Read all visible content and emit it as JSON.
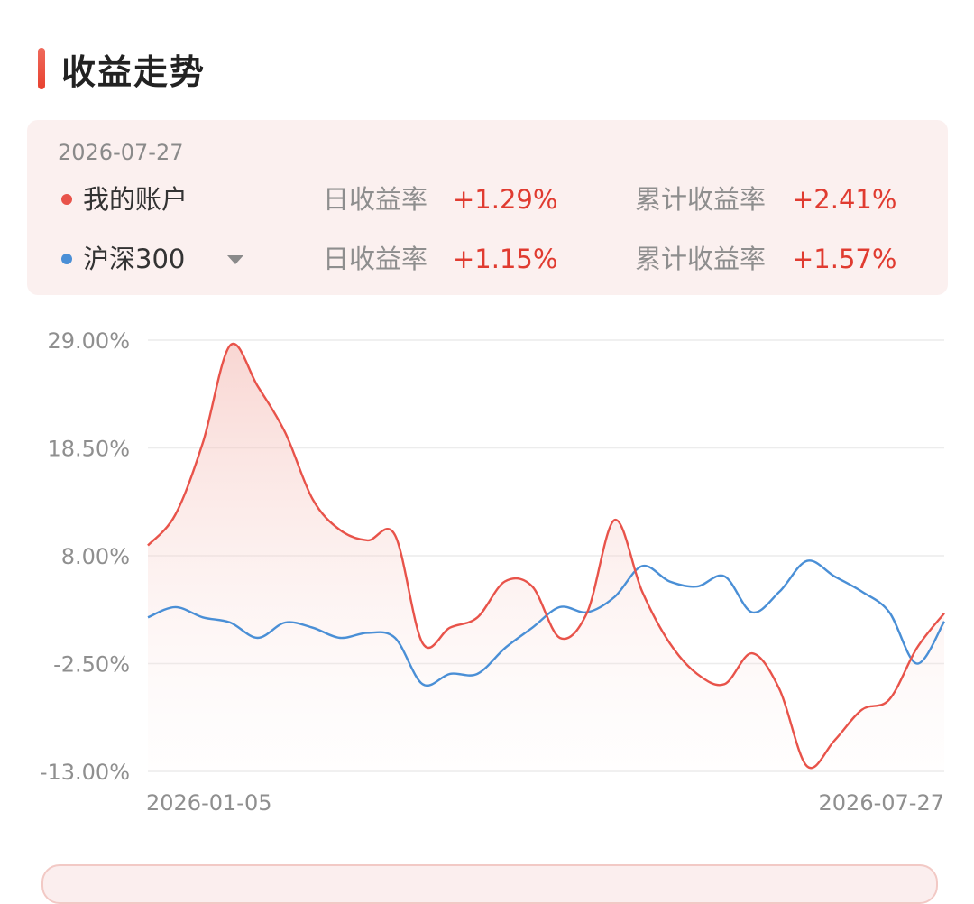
{
  "section": {
    "title": "收益走势"
  },
  "info": {
    "date": "2026-07-27",
    "rows": [
      {
        "name": "我的账户",
        "color": "#e8534a",
        "day_label": "日收益率",
        "day_value": "+1.29%",
        "cum_label": "累计收益率",
        "cum_value": "+2.41%"
      },
      {
        "name": "沪深300",
        "color": "#4a8fd6",
        "day_label": "日收益率",
        "day_value": "+1.15%",
        "cum_label": "累计收益率",
        "cum_value": "+1.57%",
        "dropdown_icon": "caret-down-icon"
      }
    ]
  },
  "chart_data": {
    "type": "line",
    "x_start": "2026-01-05",
    "x_end": "2026-07-27",
    "x_tick_labels": [
      "2026-01-05",
      "2026-07-27"
    ],
    "y_tick_labels": [
      "29.00%",
      "18.50%",
      "8.00%",
      "-2.50%",
      "-13.00%"
    ],
    "y_ticks": [
      29,
      18.5,
      8,
      -2.5,
      -13
    ],
    "ylim": [
      -13,
      29
    ],
    "grid": true,
    "series": [
      {
        "name": "我的账户",
        "color": "#e8534a",
        "area_fill": true,
        "x": [
          "2026-01-05",
          "2026-01-12",
          "2026-01-19",
          "2026-01-26",
          "2026-02-02",
          "2026-02-09",
          "2026-02-16",
          "2026-02-23",
          "2026-03-02",
          "2026-03-09",
          "2026-03-16",
          "2026-03-23",
          "2026-03-30",
          "2026-04-06",
          "2026-04-13",
          "2026-04-20",
          "2026-04-27",
          "2026-05-04",
          "2026-05-11",
          "2026-05-18",
          "2026-05-25",
          "2026-06-01",
          "2026-06-08",
          "2026-06-15",
          "2026-06-22",
          "2026-06-29",
          "2026-07-06",
          "2026-07-13",
          "2026-07-20",
          "2026-07-27"
        ],
        "values": [
          9.0,
          12.0,
          19.0,
          28.5,
          24.5,
          20.0,
          13.5,
          10.5,
          9.5,
          10.0,
          -0.5,
          1.0,
          2.0,
          5.5,
          5.0,
          0.0,
          2.5,
          11.5,
          4.5,
          -0.5,
          -3.5,
          -4.5,
          -1.5,
          -5.0,
          -12.5,
          -10.0,
          -7.0,
          -6.0,
          -1.0,
          2.4
        ]
      },
      {
        "name": "沪深300",
        "color": "#4a8fd6",
        "area_fill": false,
        "x": [
          "2026-01-05",
          "2026-01-12",
          "2026-01-19",
          "2026-01-26",
          "2026-02-02",
          "2026-02-09",
          "2026-02-16",
          "2026-02-23",
          "2026-03-02",
          "2026-03-09",
          "2026-03-16",
          "2026-03-23",
          "2026-03-30",
          "2026-04-06",
          "2026-04-13",
          "2026-04-20",
          "2026-04-27",
          "2026-05-04",
          "2026-05-11",
          "2026-05-18",
          "2026-05-25",
          "2026-06-01",
          "2026-06-08",
          "2026-06-15",
          "2026-06-22",
          "2026-06-29",
          "2026-07-06",
          "2026-07-13",
          "2026-07-20",
          "2026-07-27"
        ],
        "values": [
          2.0,
          3.0,
          2.0,
          1.5,
          0.0,
          1.5,
          1.0,
          0.0,
          0.5,
          0.0,
          -4.5,
          -3.5,
          -3.5,
          -1.0,
          1.0,
          3.0,
          2.5,
          4.0,
          7.0,
          5.5,
          5.0,
          6.0,
          2.5,
          4.5,
          7.5,
          6.0,
          4.5,
          2.5,
          -2.5,
          1.6
        ]
      }
    ]
  }
}
